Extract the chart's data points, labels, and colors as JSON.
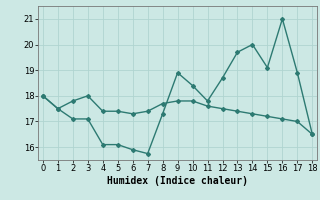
{
  "line1_x": [
    0,
    1,
    2,
    3,
    4,
    5,
    6,
    7,
    8,
    9,
    10,
    11,
    12,
    13,
    14,
    15,
    16,
    17,
    18
  ],
  "line1_y": [
    18.0,
    17.5,
    17.1,
    17.1,
    16.1,
    16.1,
    15.9,
    15.75,
    17.3,
    18.9,
    18.4,
    17.8,
    18.7,
    19.7,
    20.0,
    19.1,
    21.0,
    18.9,
    16.5
  ],
  "line2_x": [
    0,
    1,
    2,
    3,
    4,
    5,
    6,
    7,
    8,
    9,
    10,
    11,
    12,
    13,
    14,
    15,
    16,
    17,
    18
  ],
  "line2_y": [
    18.0,
    17.5,
    17.8,
    18.0,
    17.4,
    17.4,
    17.3,
    17.4,
    17.7,
    17.8,
    17.8,
    17.6,
    17.5,
    17.4,
    17.3,
    17.2,
    17.1,
    17.0,
    16.5
  ],
  "line_color": "#2d7a72",
  "background_color": "#cce8e4",
  "grid_color": "#b0d4d0",
  "xlabel": "Humidex (Indice chaleur)",
  "xlabel_fontsize": 7,
  "yticks": [
    16,
    17,
    18,
    19,
    20,
    21
  ],
  "xticks": [
    0,
    1,
    2,
    3,
    4,
    5,
    6,
    7,
    8,
    9,
    10,
    11,
    12,
    13,
    14,
    15,
    16,
    17,
    18
  ],
  "ylim": [
    15.5,
    21.5
  ],
  "xlim": [
    -0.3,
    18.3
  ],
  "marker": "D",
  "marker_size": 2.0,
  "linewidth": 1.0
}
